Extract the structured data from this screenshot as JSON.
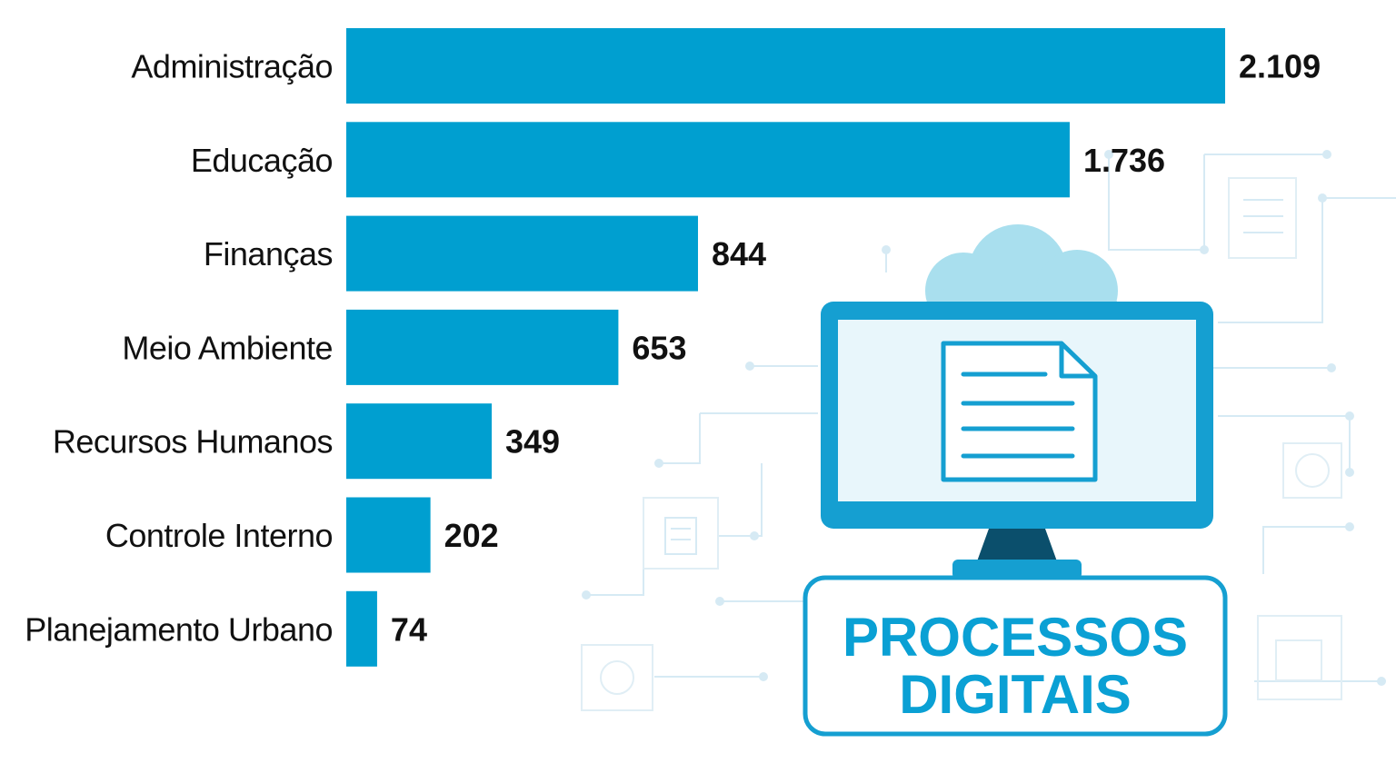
{
  "chart_data": {
    "type": "bar",
    "orientation": "horizontal",
    "categories": [
      "Administração",
      "Educação",
      "Finanças",
      "Meio Ambiente",
      "Recursos Humanos",
      "Controle Interno",
      "Planejamento Urbano"
    ],
    "values": [
      2109,
      1736,
      844,
      653,
      349,
      202,
      74
    ],
    "value_labels": [
      "2.109",
      "1.736",
      "844",
      "653",
      "349",
      "202",
      "74"
    ],
    "title": "",
    "xlabel": "",
    "ylabel": "",
    "grid": false,
    "bar_color": "#009fd0"
  },
  "illustration": {
    "badge_line1": "PROCESSOS",
    "badge_line2": "DIGITAIS",
    "accent_color": "#0aa0d4",
    "icons": [
      "cloud-icon",
      "monitor-icon",
      "document-icon"
    ]
  }
}
